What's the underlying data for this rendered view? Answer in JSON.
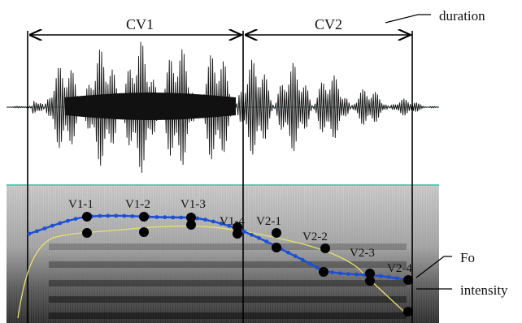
{
  "segments": [
    {
      "label": "CV1"
    },
    {
      "label": "CV2"
    }
  ],
  "annotations": {
    "duration": "duration",
    "fo": "Fo",
    "intensity": "intensity"
  },
  "points": [
    {
      "label": "V1-1"
    },
    {
      "label": "V1-2"
    },
    {
      "label": "V1-3"
    },
    {
      "label": "V1-4"
    },
    {
      "label": "V2-1"
    },
    {
      "label": "V2-2"
    },
    {
      "label": "V2-3"
    },
    {
      "label": "V2-4"
    }
  ],
  "colors": {
    "fo_curve": "#1a4fd6",
    "intensity_curve": "#e8e070",
    "baseline": "#30c0a0",
    "markers": "#000000"
  }
}
